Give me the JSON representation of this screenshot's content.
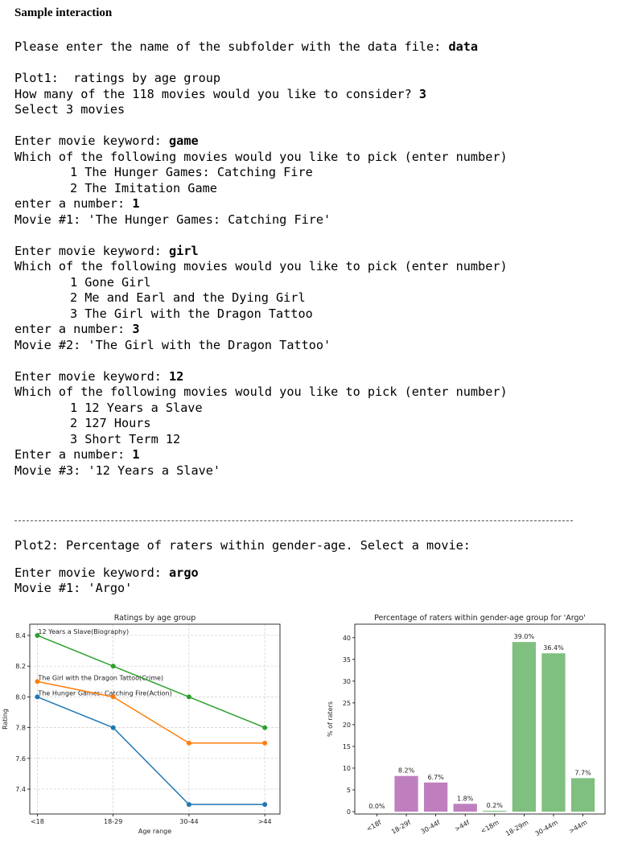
{
  "heading": "Sample interaction",
  "blocks": [
    {
      "lines": [
        {
          "text": "Please enter the name of the subfolder with the data file: ",
          "input": "data"
        }
      ]
    },
    {
      "lines": [
        {
          "text": "Plot1:  ratings by age group"
        },
        {
          "text": "How many of the 118 movies would you like to consider? ",
          "input": "3"
        },
        {
          "text": "Select 3 movies"
        }
      ]
    },
    {
      "lines": [
        {
          "text": "Enter movie keyword: ",
          "input": "game"
        },
        {
          "text": "Which of the following movies would you like to pick (enter number)"
        },
        {
          "text": "1 The Hunger Games: Catching Fire",
          "indent": true
        },
        {
          "text": "2 The Imitation Game",
          "indent": true
        },
        {
          "text": "enter a number: ",
          "input": "1"
        },
        {
          "text": "Movie #1: 'The Hunger Games: Catching Fire'"
        }
      ]
    },
    {
      "lines": [
        {
          "text": "Enter movie keyword: ",
          "input": "girl"
        },
        {
          "text": "Which of the following movies would you like to pick (enter number)"
        },
        {
          "text": "1 Gone Girl",
          "indent": true
        },
        {
          "text": "2 Me and Earl and the Dying Girl",
          "indent": true
        },
        {
          "text": "3 The Girl with the Dragon Tattoo",
          "indent": true
        },
        {
          "text": "enter a number: ",
          "input": "3"
        },
        {
          "text": "Movie #2: 'The Girl with the Dragon Tattoo'"
        }
      ]
    },
    {
      "lines": [
        {
          "text": "Enter movie keyword: ",
          "input": "12"
        },
        {
          "text": "Which of the following movies would you like to pick (enter number)"
        },
        {
          "text": "1 12 Years a Slave",
          "indent": true
        },
        {
          "text": "2 127 Hours",
          "indent": true
        },
        {
          "text": "3 Short Term 12",
          "indent": true
        },
        {
          "text": "Enter a number: ",
          "input": "1"
        },
        {
          "text": "Movie #3: '12 Years a Slave'"
        }
      ]
    },
    {
      "lines": [
        {
          "text": "Plot2: Percentage of raters within gender-age. Select a movie:"
        }
      ]
    },
    {
      "lines": [
        {
          "text": "Enter movie keyword: ",
          "input": "argo"
        },
        {
          "text": "Movie #1: 'Argo'"
        }
      ]
    }
  ],
  "chart_data": [
    {
      "type": "line",
      "title": "Ratings by age group",
      "x_label": "Age range",
      "y_label": "Rating",
      "categories": [
        "<18",
        "18-29",
        "30-44",
        ">44"
      ],
      "series": [
        {
          "name": "The Hunger Games: Catching Fire(Action)",
          "color": "#1f77b4",
          "values": [
            8.0,
            7.8,
            7.3,
            7.3
          ]
        },
        {
          "name": "The Girl with the Dragon Tattoo(Crime)",
          "color": "#ff7f0e",
          "values": [
            8.1,
            8.0,
            7.7,
            7.7
          ]
        },
        {
          "name": "12 Years a Slave(Biography)",
          "color": "#2ca02c",
          "values": [
            8.4,
            8.2,
            8.0,
            7.8
          ]
        }
      ],
      "ylim": [
        7.238,
        8.473
      ],
      "yticks": [
        {
          "value": 7.4,
          "label": "7.4"
        },
        {
          "value": 7.6,
          "label": "7.6"
        },
        {
          "value": 7.8,
          "label": "7.8"
        },
        {
          "value": 8.0,
          "label": "8.0"
        },
        {
          "value": 8.2,
          "label": "8.2"
        },
        {
          "value": 8.4,
          "label": "8.4"
        }
      ],
      "grid": true
    },
    {
      "type": "bar",
      "title": "Percentage of raters within gender-age group for 'Argo'",
      "y_label": "% of raters",
      "categories": [
        "<18f",
        "18-29f",
        "30-44f",
        ">44f",
        "<18m",
        "18-29m",
        "30-44m",
        ">44m"
      ],
      "values": [
        0.0,
        8.2,
        6.7,
        1.8,
        0.2,
        39.0,
        36.4,
        7.7
      ],
      "value_labels": [
        "0.0%",
        "8.2%",
        "6.7%",
        "1.8%",
        "0.2%",
        "39.0%",
        "36.4%",
        "7.7%"
      ],
      "colors": [
        "#bf7fbf",
        "#bf7fbf",
        "#bf7fbf",
        "#bf7fbf",
        "#7fbf7f",
        "#7fbf7f",
        "#7fbf7f",
        "#7fbf7f"
      ],
      "ylim": [
        -0.55,
        43.1
      ],
      "yticks": [
        0,
        5,
        10,
        15,
        20,
        25,
        30,
        35,
        40
      ],
      "grid": false
    }
  ]
}
